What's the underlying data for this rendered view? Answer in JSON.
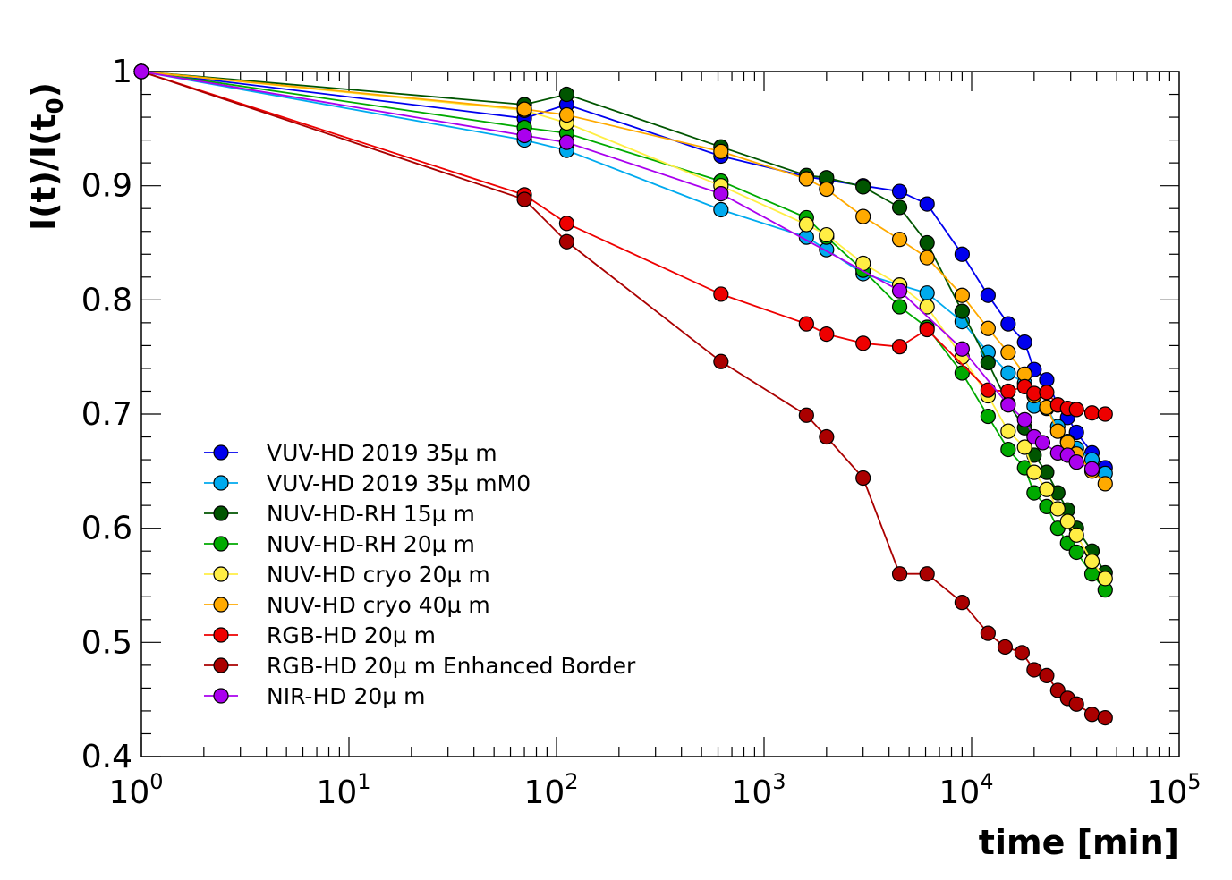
{
  "chart_data": {
    "type": "scatter",
    "title": "",
    "xlabel": "time [min]",
    "ylabel_base": "I(t)/I(t",
    "ylabel_sub": "0",
    "ylabel_close": ")",
    "xscale": "log",
    "xlim": [
      1,
      100000
    ],
    "ylim": [
      0.4,
      1.0
    ],
    "grid": false,
    "legend_position": "lower-left",
    "x_ticks": [
      {
        "base": "10",
        "exp": "0",
        "value": 1
      },
      {
        "base": "10",
        "exp": "1",
        "value": 10
      },
      {
        "base": "10",
        "exp": "2",
        "value": 100
      },
      {
        "base": "10",
        "exp": "3",
        "value": 1000
      },
      {
        "base": "10",
        "exp": "4",
        "value": 10000
      },
      {
        "base": "10",
        "exp": "5",
        "value": 100000
      }
    ],
    "y_ticks": [
      {
        "label": "0.4",
        "value": 0.4
      },
      {
        "label": "0.5",
        "value": 0.5
      },
      {
        "label": "0.6",
        "value": 0.6
      },
      {
        "label": "0.7",
        "value": 0.7
      },
      {
        "label": "0.8",
        "value": 0.8
      },
      {
        "label": "0.9",
        "value": 0.9
      },
      {
        "label": "1",
        "value": 1.0
      }
    ],
    "series": [
      {
        "name": "VUV-HD 2019 35µ m",
        "color": "#0000ee",
        "x": [
          1,
          70,
          112,
          620,
          1600,
          2000,
          3000,
          4500,
          6100,
          9000,
          12000,
          15000,
          18000,
          20000,
          23000,
          26000,
          29000,
          32000,
          38000,
          44000
        ],
        "y": [
          1.0,
          0.959,
          0.971,
          0.926,
          0.908,
          0.905,
          0.9,
          0.895,
          0.884,
          0.84,
          0.804,
          0.779,
          0.763,
          0.739,
          0.73,
          0.708,
          0.697,
          0.684,
          0.666,
          0.653
        ]
      },
      {
        "name": "VUV-HD 2019 35µ mM0",
        "color": "#00aaee",
        "x": [
          1,
          70,
          112,
          620,
          1600,
          2000,
          3000,
          4500,
          6100,
          9000,
          12000,
          15000,
          18000,
          20000,
          23000,
          26000,
          29000,
          32000,
          38000,
          44000
        ],
        "y": [
          1.0,
          0.94,
          0.931,
          0.879,
          0.855,
          0.844,
          0.823,
          0.813,
          0.806,
          0.781,
          0.754,
          0.736,
          0.727,
          0.707,
          0.705,
          0.689,
          0.676,
          0.67,
          0.66,
          0.648
        ]
      },
      {
        "name": "NUV-HD-RH 15µ m",
        "color": "#005500",
        "x": [
          1,
          70,
          112,
          620,
          1600,
          2000,
          3000,
          4500,
          6100,
          9000,
          12000,
          15000,
          18000,
          20000,
          23000,
          26000,
          29000,
          32000,
          38000,
          44000
        ],
        "y": [
          1.0,
          0.971,
          0.98,
          0.934,
          0.909,
          0.907,
          0.899,
          0.881,
          0.85,
          0.79,
          0.745,
          0.709,
          0.688,
          0.664,
          0.649,
          0.631,
          0.616,
          0.6,
          0.58,
          0.561
        ]
      },
      {
        "name": "NUV-HD-RH 20µ m",
        "color": "#00aa00",
        "x": [
          1,
          70,
          112,
          620,
          1600,
          2000,
          3000,
          4500,
          6100,
          9000,
          12000,
          15000,
          18000,
          20000,
          23000,
          26000,
          29000,
          32000,
          38000,
          44000
        ],
        "y": [
          1.0,
          0.951,
          0.946,
          0.904,
          0.872,
          0.855,
          0.826,
          0.794,
          0.776,
          0.736,
          0.698,
          0.669,
          0.653,
          0.631,
          0.619,
          0.6,
          0.587,
          0.579,
          0.56,
          0.546
        ]
      },
      {
        "name": "NUV-HD cryo 20µ m",
        "color": "#ffee44",
        "x": [
          1,
          70,
          112,
          620,
          1600,
          2000,
          3000,
          4500,
          6100,
          9000,
          12000,
          15000,
          18000,
          20000,
          23000,
          26000,
          29000,
          32000,
          38000,
          44000
        ],
        "y": [
          1.0,
          0.966,
          0.955,
          0.9,
          0.866,
          0.857,
          0.832,
          0.813,
          0.794,
          0.75,
          0.716,
          0.685,
          0.671,
          0.649,
          0.634,
          0.617,
          0.606,
          0.594,
          0.571,
          0.556
        ]
      },
      {
        "name": "NUV-HD cryo 40µ m",
        "color": "#ffaa00",
        "x": [
          1,
          70,
          112,
          620,
          1600,
          2000,
          3000,
          4500,
          6100,
          9000,
          12000,
          15000,
          18000,
          20000,
          23000,
          26000,
          29000,
          32000,
          38000,
          44000
        ],
        "y": [
          1.0,
          0.967,
          0.962,
          0.93,
          0.906,
          0.897,
          0.873,
          0.853,
          0.837,
          0.804,
          0.775,
          0.754,
          0.735,
          0.716,
          0.706,
          0.685,
          0.675,
          0.665,
          0.65,
          0.639
        ]
      },
      {
        "name": "RGB-HD 20µ m",
        "color": "#ee0000",
        "x": [
          1,
          70,
          112,
          620,
          1600,
          2000,
          3000,
          4500,
          6100,
          12000,
          15000,
          18000,
          20000,
          23000,
          26000,
          29000,
          32000,
          38000,
          44000
        ],
        "y": [
          1.0,
          0.892,
          0.867,
          0.805,
          0.779,
          0.77,
          0.762,
          0.759,
          0.774,
          0.721,
          0.72,
          0.724,
          0.718,
          0.719,
          0.708,
          0.705,
          0.704,
          0.701,
          0.7
        ]
      },
      {
        "name": "RGB-HD 20µ m Enhanced Border",
        "color": "#aa0000",
        "x": [
          1,
          70,
          112,
          620,
          1600,
          2000,
          3000,
          4500,
          6100,
          9000,
          12000,
          14500,
          17500,
          20000,
          23000,
          26000,
          29000,
          32000,
          38000,
          44000
        ],
        "y": [
          1.0,
          0.888,
          0.851,
          0.746,
          0.699,
          0.68,
          0.644,
          0.56,
          0.56,
          0.535,
          0.508,
          0.496,
          0.491,
          0.476,
          0.471,
          0.458,
          0.451,
          0.446,
          0.437,
          0.434
        ]
      },
      {
        "name": "NIR-HD 20µ m",
        "color": "#aa00ee",
        "x": [
          1,
          70,
          112,
          620,
          4500,
          9000,
          15000,
          18000,
          20000,
          22000,
          26000,
          29000,
          32000,
          38000
        ],
        "y": [
          1.0,
          0.944,
          0.938,
          0.893,
          0.808,
          0.757,
          0.708,
          0.695,
          0.68,
          0.675,
          0.666,
          0.664,
          0.658,
          0.652
        ]
      }
    ]
  }
}
